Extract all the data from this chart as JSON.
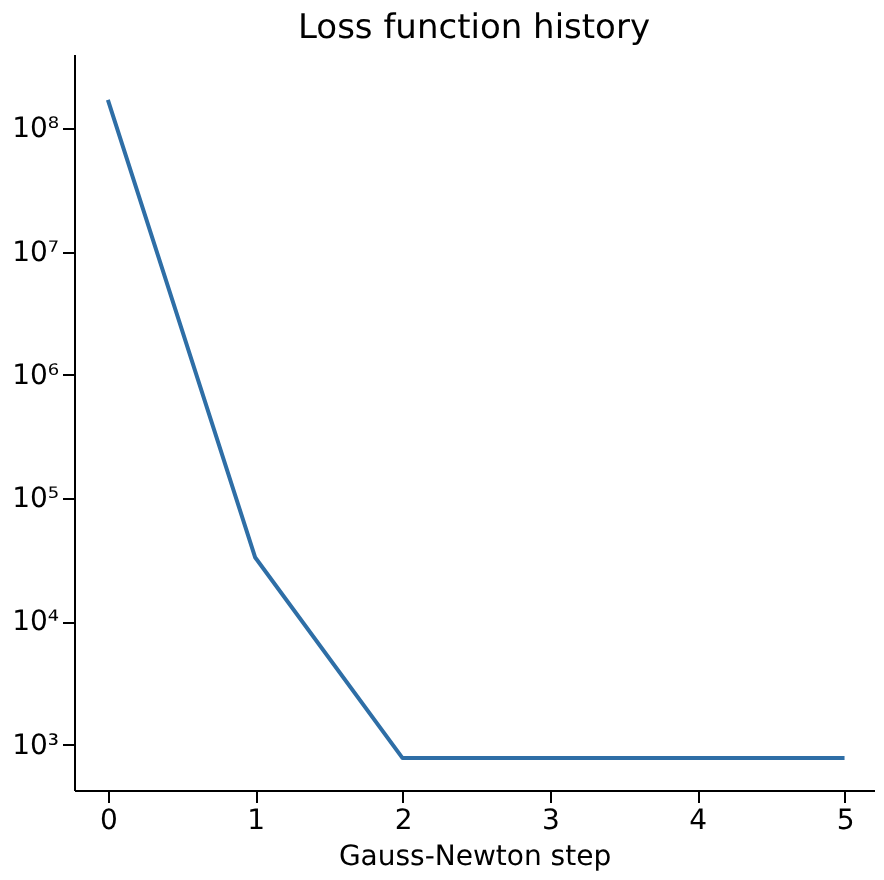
{
  "chart_data": {
    "type": "line",
    "title": "Loss function history",
    "xlabel": "Gauss-Newton step",
    "x": [
      0,
      1,
      2,
      3,
      4,
      5
    ],
    "series": [
      {
        "color": "#2e6ea6",
        "values": [
          170000000,
          33000,
          780,
          780,
          780,
          780
        ]
      }
    ],
    "log": "y",
    "grid": false,
    "marker": "none",
    "line_style": "solid",
    "xlim": [
      -0.23,
      5.2
    ],
    "xticks": [
      0,
      1,
      2,
      3,
      4,
      5
    ],
    "ylim": [
      430,
      400000000
    ],
    "yticks": [
      {
        "value": 1000,
        "label": "10³"
      },
      {
        "value": 10000,
        "label": "10⁴"
      },
      {
        "value": 100000,
        "label": "10⁵"
      },
      {
        "value": 1000000,
        "label": "10⁶"
      },
      {
        "value": 10000000,
        "label": "10⁷"
      },
      {
        "value": 100000000,
        "label": "10⁸"
      }
    ]
  }
}
